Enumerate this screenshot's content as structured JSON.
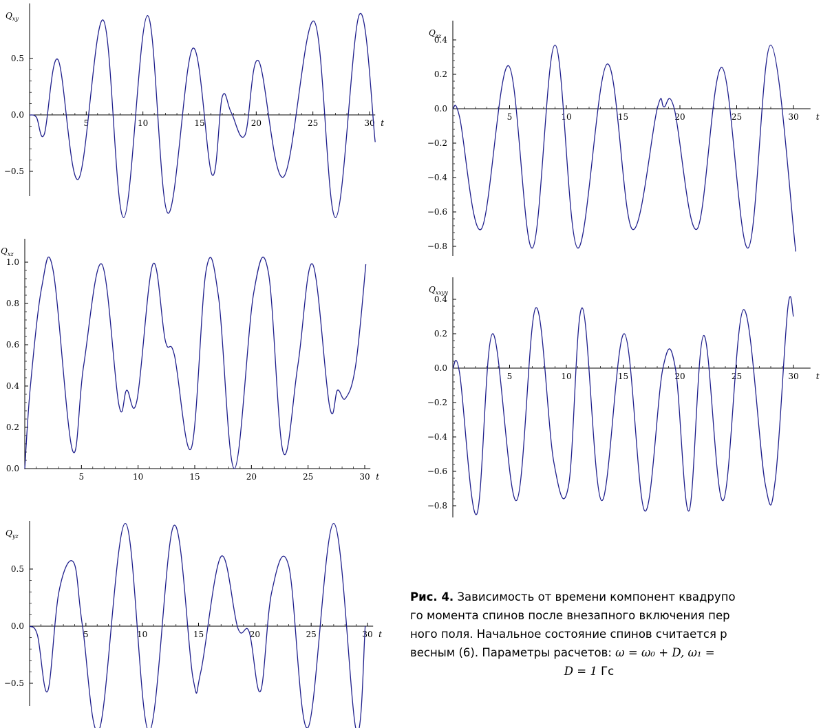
{
  "chart_data": [
    {
      "type": "line",
      "ylabel": "Q_xy",
      "xlabel": "t",
      "xticks": [
        5,
        10,
        15,
        20,
        25,
        30
      ],
      "yticks": [
        "0.5",
        "0.0",
        "−0.5"
      ],
      "xlim": [
        0,
        30.4
      ],
      "ylim": [
        -0.92,
        0.92
      ],
      "series": [
        {
          "x": [
            0,
            0.6,
            1.3,
            2.5,
            4.3,
            6.5,
            8.3,
            10.4,
            12.2,
            14.4,
            16.1,
            17.0,
            17.8,
            19.0,
            20.2,
            22.4,
            25.1,
            27.0,
            29.1,
            30.5
          ],
          "y": [
            0,
            -0.02,
            -0.17,
            0.49,
            -0.57,
            0.84,
            -0.91,
            0.88,
            -0.87,
            0.59,
            -0.53,
            0.16,
            0.02,
            -0.18,
            0.48,
            -0.55,
            0.83,
            -0.91,
            0.89,
            -0.24
          ]
        }
      ]
    },
    {
      "type": "line",
      "ylabel": "Q_xz",
      "xlabel": "t",
      "xticks": [
        5,
        10,
        15,
        20,
        25,
        30
      ],
      "yticks": [
        "1.0",
        "0.8",
        "0.6",
        "0.4",
        "0.2",
        "0.0"
      ],
      "xlim": [
        0,
        30.4
      ],
      "ylim": [
        0,
        1.0
      ],
      "series": [
        {
          "x": [
            0,
            0.5,
            1.5,
            2.5,
            4.2,
            5.2,
            6.8,
            8.3,
            9.0,
            9.9,
            11.3,
            12.4,
            13.2,
            14.7,
            16.0,
            17.1,
            18.5,
            20.2,
            21.5,
            22.8,
            24.1,
            25.4,
            26.9,
            27.6,
            28.3,
            29.2,
            30.1
          ],
          "y": [
            0,
            0.4,
            0.88,
            0.96,
            0.09,
            0.5,
            0.99,
            0.31,
            0.38,
            0.33,
            0.99,
            0.62,
            0.55,
            0.1,
            0.96,
            0.83,
            0,
            0.85,
            0.95,
            0.08,
            0.5,
            0.99,
            0.3,
            0.38,
            0.34,
            0.5,
            0.99
          ]
        }
      ]
    },
    {
      "type": "line",
      "ylabel": "Q_yz",
      "xlabel": "t",
      "xticks": [
        5,
        10,
        15,
        20,
        25,
        30
      ],
      "yticks": [
        "0.5",
        "0.0",
        "−0.5"
      ],
      "xlim": [
        0,
        30.4
      ],
      "ylim": [
        -0.92,
        0.92
      ],
      "series": [
        {
          "x": [
            0,
            0.7,
            1.6,
            2.6,
            3.9,
            4.7,
            6.2,
            8.5,
            10.6,
            12.8,
            14.5,
            15.2,
            17.0,
            18.5,
            19.5,
            20.5,
            21.5,
            23.0,
            24.7,
            27.0,
            29.0,
            29.8
          ],
          "y": [
            0,
            -0.08,
            -0.57,
            0.3,
            0.56,
            0.0,
            -0.9,
            0.9,
            -0.92,
            0.88,
            -0.45,
            -0.4,
            0.61,
            -0.02,
            -0.05,
            -0.57,
            0.3,
            0.53,
            -0.89,
            0.9,
            -0.91,
            0
          ]
        }
      ]
    },
    {
      "type": "line",
      "ylabel": "Q_zz",
      "xlabel": "t",
      "xticks": [
        5,
        10,
        15,
        20,
        25,
        30
      ],
      "yticks": [
        "0.4",
        "0.2",
        "0.0",
        "−0.2",
        "−0.4",
        "−0.6",
        "−0.8"
      ],
      "xlim": [
        0,
        32
      ],
      "ylim": [
        -0.86,
        0.43
      ],
      "series": [
        {
          "x": [
            0,
            0.6,
            2.5,
            4.9,
            7.0,
            9.0,
            11.0,
            13.6,
            15.8,
            18.0,
            18.6,
            19.5,
            21.5,
            23.7,
            26.0,
            28.0,
            30.2
          ],
          "y": [
            0,
            -0.05,
            -0.7,
            0.25,
            -0.81,
            0.37,
            -0.81,
            0.26,
            -0.7,
            0.0,
            0.01,
            0.0,
            -0.7,
            0.24,
            -0.81,
            0.37,
            -0.83
          ]
        }
      ]
    },
    {
      "type": "line",
      "ylabel": "Q_xxyy",
      "xlabel": "t",
      "xticks": [
        5,
        10,
        15,
        20,
        25,
        30
      ],
      "yticks": [
        "0.4",
        "0.2",
        "0.0",
        "−0.2",
        "−0.4",
        "−0.6",
        "−0.8"
      ],
      "xlim": [
        0,
        32
      ],
      "ylim": [
        -0.86,
        0.43
      ],
      "series": [
        {
          "x": [
            0,
            0.6,
            2.1,
            3.5,
            5.6,
            7.3,
            8.9,
            10.2,
            11.4,
            13.1,
            15.1,
            16.9,
            18.5,
            19.6,
            20.8,
            22.1,
            23.8,
            25.6,
            27.5,
            28.4,
            29.5,
            30.0
          ],
          "y": [
            0,
            -0.03,
            -0.85,
            0.2,
            -0.77,
            0.35,
            -0.55,
            -0.68,
            0.35,
            -0.77,
            0.2,
            -0.83,
            0.0,
            0.0,
            -0.83,
            0.19,
            -0.77,
            0.34,
            -0.67,
            -0.65,
            0.35,
            0.3
          ]
        }
      ]
    }
  ],
  "caption": {
    "fig_label": "Рис. 4.",
    "line1_text": "Зависимость от времени компонент квадрупо",
    "line2": "го момента спинов после внезапного включения пер",
    "line3": "ного поля. Начальное состояние спинов считается р",
    "line4_text": "весным (6). Параметры расчетов: ",
    "line4_math": "ω = ω₀ + D, ω₁ =",
    "line5_math": "D = 1",
    "line5_unit": "Гс"
  },
  "colors": {
    "curve": "#1f1f8c",
    "axes": "#000000"
  }
}
